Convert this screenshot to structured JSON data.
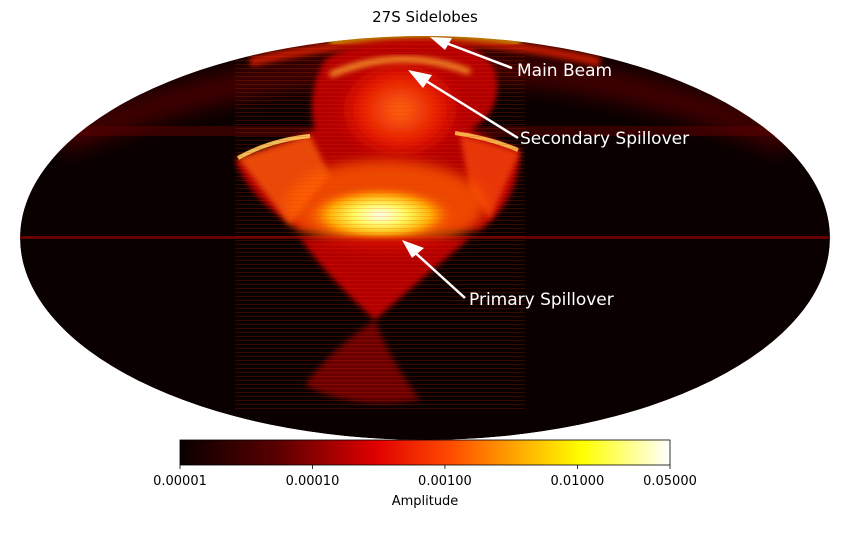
{
  "chart_data": {
    "type": "heatmap",
    "projection": "mollweide",
    "title": "27S Sidelobes",
    "annotations": [
      {
        "text": "Main Beam"
      },
      {
        "text": "Secondary Spillover"
      },
      {
        "text": "Primary Spillover"
      }
    ],
    "colorbar": {
      "label": "Amplitude",
      "scale": "log",
      "range": [
        1e-05,
        0.05
      ],
      "colormap": "hot",
      "ticks": [
        {
          "value": 1e-05,
          "label": "0.00001"
        },
        {
          "value": 0.0001,
          "label": "0.00010"
        },
        {
          "value": 0.001,
          "label": "0.00100"
        },
        {
          "value": 0.01,
          "label": "0.01000"
        },
        {
          "value": 0.05,
          "label": "0.05000"
        }
      ]
    },
    "colors": {
      "background": "#0a0000",
      "low": "#3a0000",
      "mid": "#e00000",
      "high": "#ffa000",
      "peak": "#ffffe6"
    }
  }
}
